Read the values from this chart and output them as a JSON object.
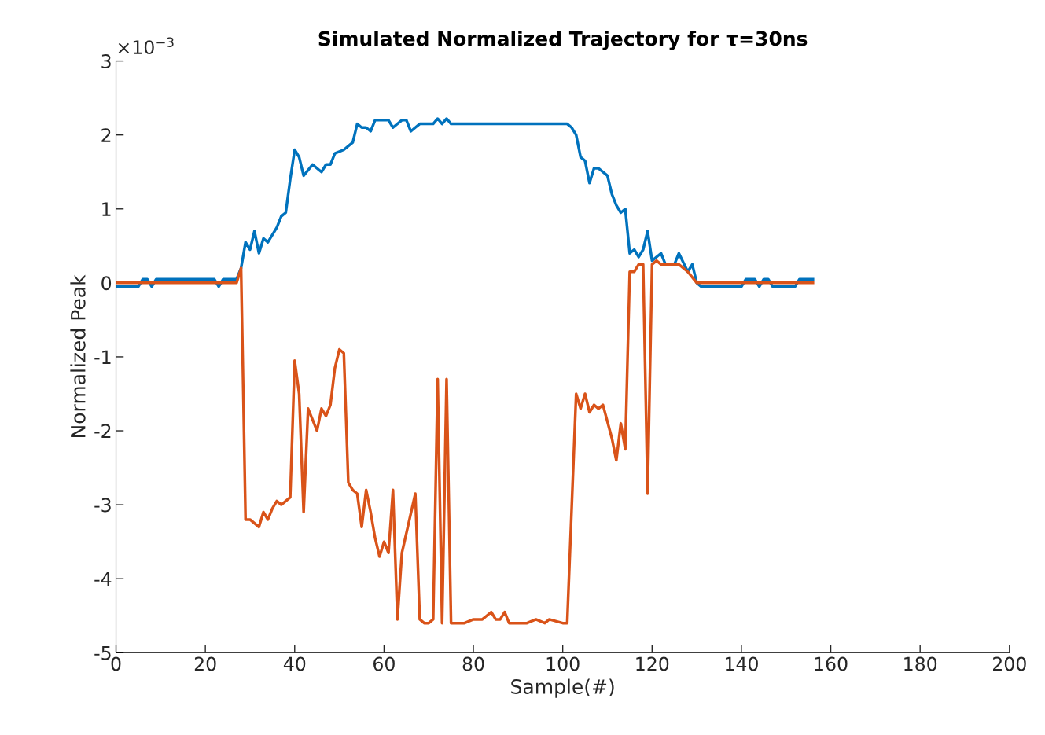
{
  "chart_data": {
    "type": "line",
    "title": "Simulated Normalized Trajectory for τ=30ns",
    "xlabel": "Sample(#)",
    "ylabel": "Normalized Peak",
    "annotations": [
      "×10$^{−3}$"
    ],
    "xlim": [
      0,
      200
    ],
    "xticks": [
      0,
      20,
      40,
      60,
      80,
      100,
      120,
      140,
      160,
      180,
      200
    ],
    "ylim": [
      -5,
      3
    ],
    "yticks": [
      -5,
      -4,
      -3,
      -2,
      -1,
      0,
      1,
      2,
      3
    ],
    "grid": false,
    "marker": "none",
    "line_style": "solid",
    "series": [
      {
        "color": "#0072bd",
        "x": [
          0,
          5,
          6,
          7,
          8,
          9,
          22,
          23,
          24,
          27,
          28,
          29,
          30,
          31,
          32,
          33,
          34,
          36,
          37,
          38,
          39,
          40,
          41,
          42,
          44,
          46,
          47,
          48,
          49,
          51,
          53,
          54,
          55,
          56,
          57,
          58,
          60,
          61,
          62,
          64,
          65,
          66,
          67,
          68,
          71,
          72,
          73,
          74,
          75,
          100,
          101,
          102,
          103,
          104,
          105,
          106,
          107,
          108,
          110,
          111,
          112,
          113,
          114,
          115,
          116,
          117,
          118,
          119,
          120,
          122,
          123,
          125,
          126,
          128,
          129,
          130,
          131,
          140,
          141,
          143,
          144,
          145,
          146,
          147,
          152,
          153,
          156
        ],
        "values": [
          -0.05,
          -0.05,
          0.05,
          0.05,
          -0.05,
          0.05,
          0.05,
          -0.05,
          0.05,
          0.05,
          0.2,
          0.55,
          0.45,
          0.7,
          0.4,
          0.6,
          0.55,
          0.75,
          0.9,
          0.95,
          1.4,
          1.8,
          1.7,
          1.45,
          1.6,
          1.5,
          1.6,
          1.6,
          1.75,
          1.8,
          1.9,
          2.15,
          2.1,
          2.1,
          2.05,
          2.2,
          2.2,
          2.2,
          2.1,
          2.2,
          2.2,
          2.05,
          2.1,
          2.15,
          2.15,
          2.22,
          2.15,
          2.22,
          2.15,
          2.15,
          2.15,
          2.1,
          2.0,
          1.7,
          1.65,
          1.35,
          1.55,
          1.55,
          1.45,
          1.2,
          1.05,
          0.95,
          1.0,
          0.4,
          0.45,
          0.35,
          0.45,
          0.7,
          0.3,
          0.4,
          0.25,
          0.25,
          0.4,
          0.15,
          0.25,
          0.0,
          -0.05,
          -0.05,
          0.05,
          0.05,
          -0.05,
          0.05,
          0.05,
          -0.05,
          -0.05,
          0.05,
          0.05
        ]
      },
      {
        "color": "#d95319",
        "x": [
          0,
          27,
          28,
          29,
          30,
          31,
          32,
          33,
          34,
          35,
          36,
          37,
          39,
          40,
          41,
          42,
          43,
          44,
          45,
          46,
          47,
          48,
          49,
          50,
          51,
          52,
          53,
          54,
          55,
          56,
          57,
          58,
          59,
          60,
          61,
          62,
          63,
          64,
          67,
          68,
          69,
          70,
          71,
          72,
          73,
          74,
          75,
          78,
          80,
          82,
          83,
          84,
          85,
          86,
          87,
          88,
          92,
          94,
          96,
          97,
          100,
          101,
          103,
          104,
          105,
          106,
          107,
          108,
          109,
          111,
          112,
          113,
          114,
          115,
          116,
          117,
          118,
          119,
          120,
          121,
          122,
          126,
          128,
          130,
          156
        ],
        "values": [
          0,
          0,
          0.2,
          -3.2,
          -3.2,
          -3.25,
          -3.3,
          -3.1,
          -3.2,
          -3.05,
          -2.95,
          -3.0,
          -2.9,
          -1.05,
          -1.5,
          -3.1,
          -1.7,
          -1.85,
          -2.0,
          -1.7,
          -1.8,
          -1.65,
          -1.15,
          -0.9,
          -0.95,
          -2.7,
          -2.8,
          -2.85,
          -3.3,
          -2.8,
          -3.1,
          -3.45,
          -3.7,
          -3.5,
          -3.65,
          -2.8,
          -4.55,
          -3.65,
          -2.85,
          -4.55,
          -4.6,
          -4.6,
          -4.55,
          -1.3,
          -4.6,
          -1.3,
          -4.6,
          -4.6,
          -4.55,
          -4.55,
          -4.5,
          -4.45,
          -4.55,
          -4.55,
          -4.45,
          -4.6,
          -4.6,
          -4.55,
          -4.6,
          -4.55,
          -4.6,
          -4.6,
          -1.5,
          -1.7,
          -1.5,
          -1.75,
          -1.65,
          -1.7,
          -1.65,
          -2.1,
          -2.4,
          -1.9,
          -2.25,
          0.15,
          0.15,
          0.25,
          0.25,
          -2.85,
          0.25,
          0.3,
          0.25,
          0.25,
          0.15,
          0.0,
          0
        ]
      }
    ]
  }
}
